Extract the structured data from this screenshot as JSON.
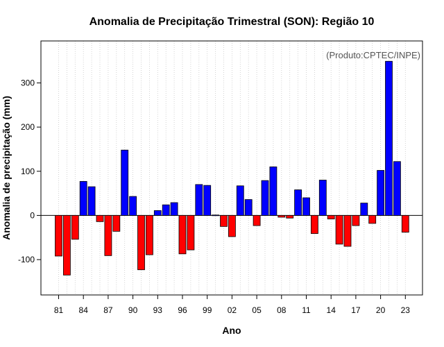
{
  "chart_data": {
    "type": "bar",
    "title": "Anomalia de Precipitação Trimestral (SON): Região 10",
    "annotation": "(Produto:CPTEC/INPE)",
    "xlabel": "Ano",
    "ylabel": "Anomalia de precipitação (mm)",
    "ylim": [
      -180,
      395
    ],
    "yticks": [
      -100,
      0,
      100,
      200,
      300
    ],
    "grid": "vertical dotted",
    "colors": {
      "positive": "#0000ff",
      "negative": "#ff0000"
    },
    "years": [
      1981,
      1982,
      1983,
      1984,
      1985,
      1986,
      1987,
      1988,
      1989,
      1990,
      1991,
      1992,
      1993,
      1994,
      1995,
      1996,
      1997,
      1998,
      1999,
      2000,
      2001,
      2002,
      2003,
      2004,
      2005,
      2006,
      2007,
      2008,
      2009,
      2010,
      2011,
      2012,
      2013,
      2014,
      2015,
      2016,
      2017,
      2018,
      2019,
      2020,
      2021,
      2022,
      2023
    ],
    "xtick_labels": [
      "81",
      "84",
      "87",
      "90",
      "93",
      "96",
      "99",
      "02",
      "05",
      "08",
      "11",
      "14",
      "17",
      "20",
      "23"
    ],
    "values": [
      -92,
      -135,
      -54,
      77,
      65,
      -14,
      -91,
      -36,
      148,
      43,
      -123,
      -89,
      11,
      24,
      29,
      -87,
      -78,
      70,
      68,
      1,
      -25,
      -48,
      67,
      36,
      -23,
      79,
      110,
      -4,
      -6,
      58,
      40,
      -41,
      80,
      -8,
      -65,
      -70,
      -23,
      28,
      -18,
      102,
      349,
      122,
      -38
    ]
  }
}
